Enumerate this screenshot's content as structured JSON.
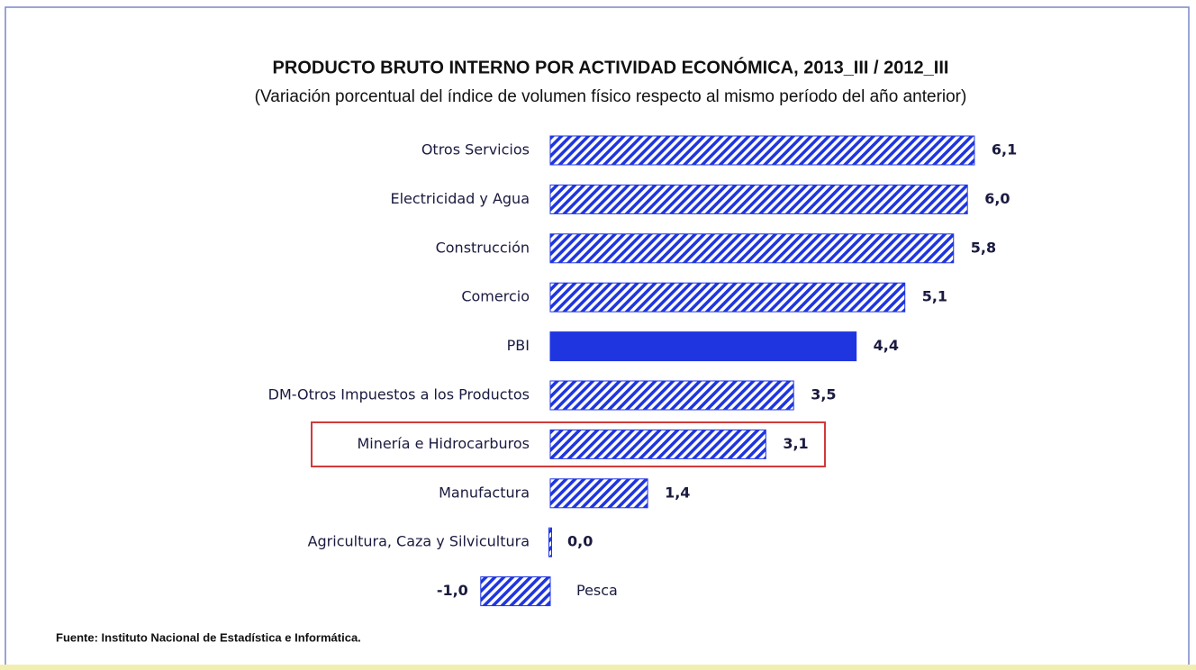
{
  "chart_data": {
    "type": "bar",
    "orientation": "horizontal",
    "title": "PRODUCTO BRUTO INTERNO POR ACTIVIDAD ECONÓMICA, 2013_III / 2012_III",
    "subtitle": "(Variación porcentual del índice de volumen físico respecto al mismo período del año anterior)",
    "categories": [
      "Otros Servicios",
      "Electricidad y Agua",
      "Construcción",
      "Comercio",
      "PBI",
      "DM-Otros Impuestos a los Productos",
      "Minería e Hidrocarburos",
      "Manufactura",
      "Agricultura, Caza y Silvicultura",
      "Pesca"
    ],
    "values": [
      6.1,
      6.0,
      5.8,
      5.1,
      4.4,
      3.5,
      3.1,
      1.4,
      0.0,
      -1.0
    ],
    "value_labels": [
      "6,1",
      "6,0",
      "5,8",
      "5,1",
      "4,4",
      "3,5",
      "3,1",
      "1,4",
      "0,0",
      "-1,0"
    ],
    "color": "#1f35e0",
    "bar_styles": [
      "hatched",
      "hatched",
      "hatched",
      "hatched",
      "solid",
      "hatched",
      "hatched",
      "hatched",
      "hatched",
      "hatched"
    ],
    "source": "Fuente: Instituto Nacional de Estadística e Informática."
  }
}
